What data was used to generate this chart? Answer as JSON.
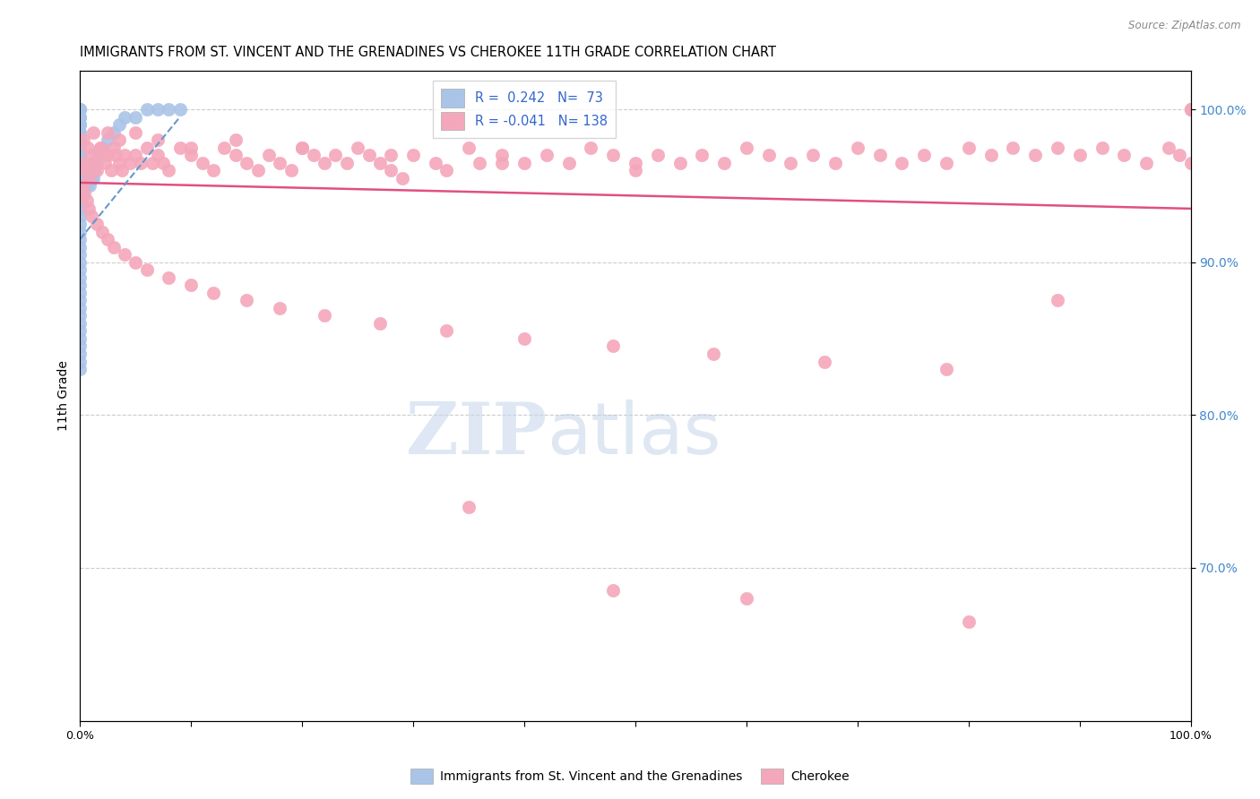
{
  "title": "IMMIGRANTS FROM ST. VINCENT AND THE GRENADINES VS CHEROKEE 11TH GRADE CORRELATION CHART",
  "source": "Source: ZipAtlas.com",
  "ylabel": "11th Grade",
  "right_yticks": [
    100.0,
    90.0,
    80.0,
    70.0
  ],
  "blue_R": 0.242,
  "blue_N": 73,
  "pink_R": -0.041,
  "pink_N": 138,
  "blue_color": "#aac4e8",
  "pink_color": "#f4a7bb",
  "blue_line_color": "#6699cc",
  "pink_line_color": "#e05080",
  "legend_R_color": "#3366cc",
  "legend_N_color": "#3366cc",
  "right_axis_color": "#4488cc",
  "blue_label": "Immigrants from St. Vincent and the Grenadines",
  "pink_label": "Cherokee",
  "watermark_ZIP": "ZIP",
  "watermark_atlas": "atlas",
  "xmin": 0.0,
  "xmax": 100.0,
  "ymin": 60.0,
  "ymax": 102.5,
  "background_color": "#ffffff",
  "grid_color": "#cccccc",
  "blue_scatter_x": [
    0.0,
    0.0,
    0.0,
    0.0,
    0.0,
    0.0,
    0.0,
    0.0,
    0.0,
    0.0,
    0.0,
    0.0,
    0.0,
    0.0,
    0.0,
    0.0,
    0.0,
    0.0,
    0.0,
    0.0,
    0.0,
    0.0,
    0.0,
    0.0,
    0.0,
    0.0,
    0.0,
    0.0,
    0.0,
    0.0,
    0.0,
    0.0,
    0.0,
    0.0,
    0.0,
    0.0,
    0.0,
    0.0,
    0.0,
    0.0,
    0.0,
    0.0,
    0.1,
    0.1,
    0.1,
    0.1,
    0.1,
    0.2,
    0.2,
    0.3,
    0.3,
    0.4,
    0.5,
    0.6,
    0.7,
    0.8,
    0.9,
    1.0,
    1.1,
    1.2,
    1.3,
    1.5,
    1.7,
    2.0,
    2.5,
    3.0,
    3.5,
    4.0,
    5.0,
    6.0,
    7.0,
    8.0,
    9.0
  ],
  "blue_scatter_y": [
    100.0,
    100.0,
    100.0,
    99.5,
    99.5,
    99.0,
    99.0,
    98.5,
    98.5,
    98.0,
    97.5,
    97.0,
    96.5,
    96.0,
    95.5,
    95.0,
    94.5,
    94.0,
    93.5,
    93.0,
    92.5,
    92.0,
    91.5,
    91.0,
    90.5,
    90.0,
    89.5,
    89.0,
    88.5,
    88.0,
    87.5,
    87.0,
    86.5,
    86.0,
    85.5,
    85.0,
    84.5,
    84.0,
    83.5,
    83.0,
    97.0,
    96.5,
    96.0,
    95.5,
    95.0,
    94.5,
    94.0,
    95.5,
    95.0,
    95.5,
    95.0,
    95.5,
    95.0,
    95.5,
    96.0,
    95.5,
    95.0,
    95.5,
    96.0,
    95.5,
    96.0,
    96.5,
    97.0,
    97.5,
    98.0,
    98.5,
    99.0,
    99.5,
    99.5,
    100.0,
    100.0,
    100.0,
    100.0
  ],
  "pink_scatter_x": [
    0.3,
    0.5,
    0.8,
    1.0,
    1.2,
    1.5,
    1.8,
    2.0,
    2.2,
    2.5,
    2.8,
    3.0,
    3.2,
    3.5,
    3.8,
    4.0,
    4.5,
    5.0,
    5.5,
    6.0,
    6.5,
    7.0,
    7.5,
    8.0,
    9.0,
    10.0,
    11.0,
    12.0,
    13.0,
    14.0,
    15.0,
    16.0,
    17.0,
    18.0,
    19.0,
    20.0,
    21.0,
    22.0,
    23.0,
    24.0,
    25.0,
    26.0,
    27.0,
    28.0,
    29.0,
    30.0,
    32.0,
    33.0,
    35.0,
    36.0,
    38.0,
    40.0,
    42.0,
    44.0,
    46.0,
    48.0,
    50.0,
    52.0,
    54.0,
    56.0,
    58.0,
    60.0,
    62.0,
    64.0,
    66.0,
    68.0,
    70.0,
    72.0,
    74.0,
    76.0,
    78.0,
    80.0,
    82.0,
    84.0,
    86.0,
    88.0,
    90.0,
    92.0,
    94.0,
    96.0,
    98.0,
    99.0,
    100.0,
    100.0,
    100.0,
    100.0,
    100.0,
    0.2,
    0.4,
    0.6,
    0.8,
    1.0,
    1.5,
    2.0,
    2.5,
    3.0,
    4.0,
    5.0,
    6.0,
    8.0,
    10.0,
    12.0,
    15.0,
    18.0,
    22.0,
    27.0,
    33.0,
    40.0,
    48.0,
    57.0,
    67.0,
    78.0,
    88.0,
    0.3,
    0.7,
    1.2,
    1.8,
    2.5,
    3.5,
    5.0,
    7.0,
    10.0,
    14.0,
    20.0,
    28.0,
    38.0,
    50.0,
    35.0,
    48.0,
    60.0,
    80.0
  ],
  "pink_scatter_y": [
    96.5,
    96.0,
    95.5,
    97.0,
    96.5,
    96.0,
    97.5,
    97.0,
    96.5,
    97.0,
    96.0,
    97.5,
    97.0,
    96.5,
    96.0,
    97.0,
    96.5,
    97.0,
    96.5,
    97.5,
    96.5,
    97.0,
    96.5,
    96.0,
    97.5,
    97.0,
    96.5,
    96.0,
    97.5,
    97.0,
    96.5,
    96.0,
    97.0,
    96.5,
    96.0,
    97.5,
    97.0,
    96.5,
    97.0,
    96.5,
    97.5,
    97.0,
    96.5,
    96.0,
    95.5,
    97.0,
    96.5,
    96.0,
    97.5,
    96.5,
    97.0,
    96.5,
    97.0,
    96.5,
    97.5,
    97.0,
    96.5,
    97.0,
    96.5,
    97.0,
    96.5,
    97.5,
    97.0,
    96.5,
    97.0,
    96.5,
    97.5,
    97.0,
    96.5,
    97.0,
    96.5,
    97.5,
    97.0,
    97.5,
    97.0,
    97.5,
    97.0,
    97.5,
    97.0,
    96.5,
    97.5,
    97.0,
    96.5,
    100.0,
    100.0,
    100.0,
    100.0,
    95.0,
    94.5,
    94.0,
    93.5,
    93.0,
    92.5,
    92.0,
    91.5,
    91.0,
    90.5,
    90.0,
    89.5,
    89.0,
    88.5,
    88.0,
    87.5,
    87.0,
    86.5,
    86.0,
    85.5,
    85.0,
    84.5,
    84.0,
    83.5,
    83.0,
    87.5,
    98.0,
    97.5,
    98.5,
    97.5,
    98.5,
    98.0,
    98.5,
    98.0,
    97.5,
    98.0,
    97.5,
    97.0,
    96.5,
    96.0,
    74.0,
    68.5,
    68.0,
    66.5
  ]
}
